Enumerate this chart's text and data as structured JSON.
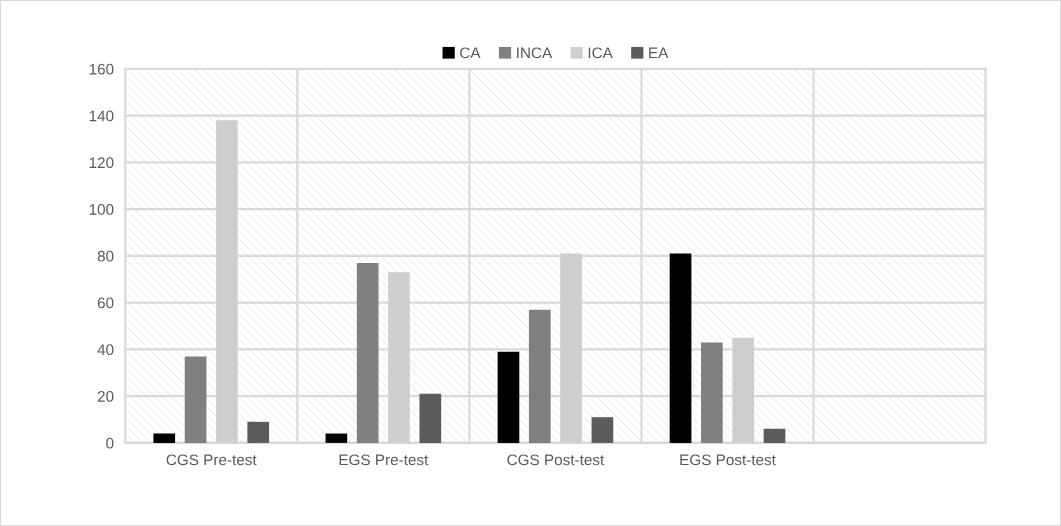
{
  "chart_data": {
    "type": "bar",
    "categories": [
      "CGS Pre-test",
      "EGS Pre-test",
      "CGS Post-test",
      "EGS Post-test",
      null
    ],
    "series": [
      {
        "name": "CA",
        "color": "#000000",
        "values": [
          4,
          4,
          39,
          81,
          null
        ]
      },
      {
        "name": "INCA",
        "color": "#808080",
        "values": [
          37,
          77,
          57,
          43,
          null
        ]
      },
      {
        "name": "ICA",
        "color": "#cfcdce",
        "values": [
          138,
          73,
          81,
          45,
          null
        ]
      },
      {
        "name": "EA",
        "color": "#5b5b5b",
        "values": [
          9,
          21,
          11,
          6,
          null
        ]
      }
    ],
    "ylim": [
      0,
      160
    ],
    "yticks": [
      0,
      20,
      40,
      60,
      80,
      100,
      120,
      140,
      160
    ],
    "grid": true,
    "legend": "top"
  }
}
